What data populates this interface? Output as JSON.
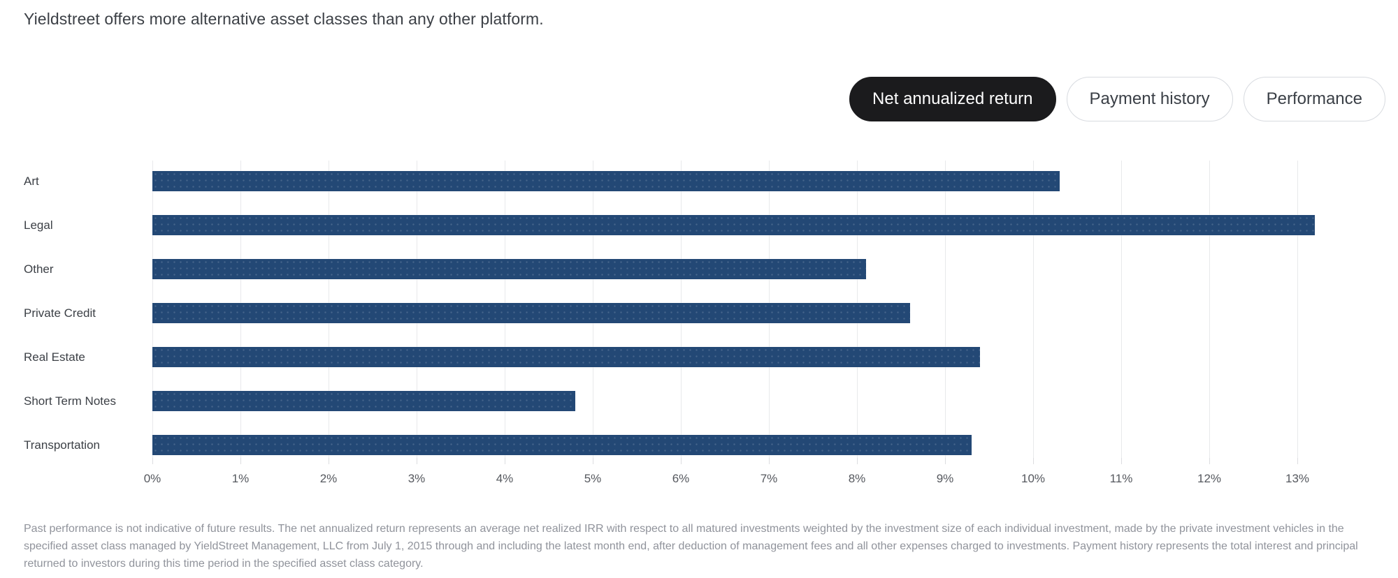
{
  "title": "Yieldstreet offers more alternative asset classes than any other platform.",
  "tabs": {
    "items": [
      {
        "label": "Net annualized return",
        "active": true
      },
      {
        "label": "Payment history",
        "active": false
      },
      {
        "label": "Performance",
        "active": false
      }
    ]
  },
  "chart_data": {
    "type": "bar",
    "orientation": "horizontal",
    "title": "",
    "categories": [
      "Art",
      "Legal",
      "Other",
      "Private Credit",
      "Real Estate",
      "Short Term Notes",
      "Transportation"
    ],
    "values": [
      10.3,
      13.2,
      8.1,
      8.6,
      9.4,
      4.8,
      9.3
    ],
    "unit": "%",
    "x_ticks": [
      "0%",
      "1%",
      "2%",
      "3%",
      "4%",
      "5%",
      "6%",
      "7%",
      "8%",
      "9%",
      "10%",
      "11%",
      "12%",
      "13%"
    ],
    "xlim": [
      0,
      13
    ],
    "grid": true,
    "legend": "none",
    "bar_color": "#234875",
    "gridline_color": "#e8e9eb",
    "tab_active_color": "#1b1b1d"
  },
  "footer": {
    "disclaimer": "Past performance is not indicative of future results. The net annualized return represents an average net realized IRR with respect to all matured investments weighted by the investment size of each individual investment, made by the private investment vehicles in the specified asset class managed by YieldStreet Management, LLC from July 1, 2015 through and including the latest month end, after deduction of management fees and all other expenses charged to investments. Payment history represents the total interest and principal returned to investors during this time period in the specified asset class category."
  }
}
